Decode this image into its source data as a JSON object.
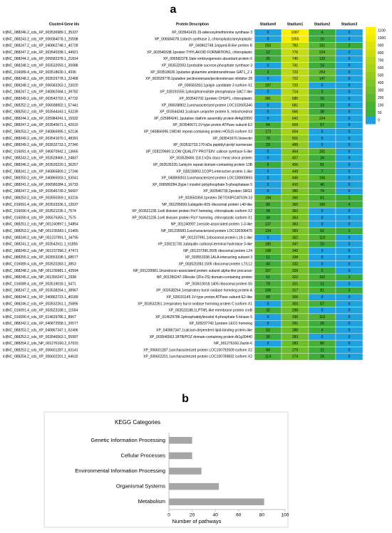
{
  "panel_a": {
    "label": "a",
    "columns": [
      "Cluster4 Gene Ids",
      "Protein Description",
      "Stadium0",
      "Stadium1",
      "Stadium2",
      "Stadium3"
    ],
    "rows": [
      [
        "lcl|NC_088246.2_cds_XP_003536989.1_35337",
        "XP_003541415.15-adenosylmethionine synthase 3",
        0,
        1087,
        4,
        0
      ],
      [
        "lcl|NC_088243.2_cds_XP_006584078.1_25598",
        "XP_006584078.1starch synthase 3, chloroplastic/amyloplastic",
        0,
        1055,
        10,
        0
      ],
      [
        "lcl|NC_088247.2_cds_XP_040862748.1_40728",
        "XP_040862748.1nipped-B-like protein B",
        253,
        783,
        151,
        2
      ],
      [
        "lcl|NC_088247.2_cds_XP_003540338.1_44921",
        "XP_003540338.1protein THYLAKOID FORMATION1, chloroplastic",
        12,
        776,
        224,
        0
      ],
      [
        "lcl|NC_088244.2_cds_XP_006582378.1_21814",
        "XP_006582378.1late embryogenesis abundant protein 6",
        25,
        745,
        132,
        0
      ],
      [
        "lcl|NC_088248.2_cds_XP_003532093.1_30088",
        "XP_003532093.1probable sucrose-phosphate synthase 3",
        0,
        741,
        14,
        0
      ],
      [
        "lcl|NC_016089.4_cds_XP_003518630.1_4336",
        "XP_003518630.1putative glutamine amidotransferase GAT1_2.1",
        3,
        722,
        253,
        0
      ],
      [
        "lcl|NC_088248.2_cds_XP_003529778.1_22468",
        "XP_003529778.1putative pectinesterase/pectinesterase inhibitor 28",
        0,
        722,
        147,
        0
      ],
      [
        "lcl|NC_088248.2_cds_XP_006583263.1_23020",
        "XP_006583263.1golgin candidate 3 isoform X1",
        197,
        720,
        0,
        0
      ],
      [
        "lcl|NC_088247.2_cds_XP_040862584.1_39782",
        "XP_028191555.1phosphoinositide phosphatase SAC7-like",
        0,
        714,
        3,
        0
      ],
      [
        "lcl|NC_088249.2_cds_XP_003542702.1_47732",
        "XP_003542702.1protein CHUP1, chloroplastic",
        281,
        685,
        15,
        0
      ],
      [
        "lcl|NC_088252.2_cds_XP_006598902.1_57441",
        "XP_006598902.1uncharacterized protein LOC102665340",
        0,
        681,
        33,
        0
      ],
      [
        "lcl|NC_088250.2_cds_XP_003544343.1_53239",
        "XP_003544343.1calcium uniporter protein 5, mitochondrial",
        0,
        666,
        38,
        0
      ],
      [
        "lcl|NC_088244.2_cds_XP_025984241.1_15932",
        "XP_025984241.1putative clathrin assembly protein At4g02650",
        0,
        642,
        224,
        0
      ],
      [
        "lcl|NC_088247.2_cds_XP_003540671.1_42010",
        "XP_003540671.1V-type proton ATPase subunit E2",
        64,
        609,
        57,
        0
      ],
      [
        "lcl|NC_088253.2_cds_XP_040866995.1_62136",
        "XP_040866995.1WD40 repeat-containing protein HOS15 isoform X3",
        173,
        604,
        0,
        0
      ],
      [
        "lcl|NC_088249.2_cds_XP_003541670.1_48391",
        "XP_003541670.1kinectin",
        76,
        501,
        0,
        0
      ],
      [
        "lcl|NC_088249.2_cds_XP_003532733.1_27340",
        "XP_003532733.170 kDa peptidyl-prolyl isomerase",
        23,
        485,
        0,
        0
      ],
      [
        "lcl|NC_016091.4_cds_XP_040870942.1_13665",
        "XP_028229669.1LOW QUALITY PROTEIN: callose synthase 5-like",
        0,
        464,
        151,
        0
      ],
      [
        "lcl|NC_088243.2_cds_XP_003528466.1_24837",
        "XP_003528466.118.1 kDa class I heat shock protein",
        0,
        457,
        24,
        0
      ],
      [
        "lcl|NC_088246.2_cds_XP_003535220.1_36257",
        "XP_003535220.1ankyrin repeat domain-containing protein 13B",
        5,
        456,
        81,
        0
      ],
      [
        "lcl|NC_088241.2_cds_XP_040865809.2_17246",
        "XP_028230893.1COP1-interactive protein 1-like",
        0,
        449,
        7,
        0
      ],
      [
        "lcl|NC_088250.2_cds_XP_040865003.1_53041",
        "XP_040865003.1uncharacterized protein LOC100800693",
        0,
        446,
        156,
        0
      ],
      [
        "lcl|NC_088241.2_cds_XP_006580284.1_16733",
        "XP_006580284.2type I inositol polyphosphate 5-phosphatase 5",
        0,
        410,
        40,
        0
      ],
      [
        "lcl|NC_088247.2_cds_XP_003546739.2_56607",
        "XP_003546739.2protein SRG1",
        0,
        385,
        74,
        0
      ],
      [
        "lcl|NC_088253.2_cds_XP_003550359.1_63216",
        "XP_003550359.1protein DETOXIFICATION 33",
        194,
        366,
        61,
        1
      ],
      [
        "lcl|NC_016091.4_cds_XP_003533336.1_13937",
        "NP_001295699.1ubiquitin-60S ribosomal protein L40-like",
        89,
        365,
        160,
        4
      ],
      [
        "lcl|NC_016090.4_cds_XP_003521235.1_7574",
        "XP_003521235.1cell division protein FtsY homolog, chloroplastic isoform X2",
        34,
        363,
        0,
        0
      ],
      [
        "lcl|NC_016090.4_cds_XP_006576355.1_7575",
        "XP_003521235.1cell division protein FtsY homolog, chloroplastic isoform X1",
        34,
        363,
        0,
        0
      ],
      [
        "lcl|NC_088251.2_cds_NP_001240997.1_54854",
        "NP_001240997.1vesicle-associated protein 1-3-like",
        137,
        363,
        0,
        0
      ],
      [
        "lcl|NC_088253.2_cds_NP_001235583.1_61405",
        "NP_001235583.1uncharacterized protein LOC100306475",
        134,
        360,
        62,
        1
      ],
      [
        "lcl|NC_088249.2_cds_NP_001237991.1_34795",
        "NP_001237991.1ribosomal protein L19-1-like",
        0,
        352,
        119,
        0
      ],
      [
        "lcl|NC_088241.2_cds_XP_003542611.1_61855",
        "XP_028211730.1ubiquitin carboxyl-terminal hydrolase 3-like",
        185,
        347,
        10,
        0
      ],
      [
        "lcl|NC_088249.2_cds_NP_001237396.2_47471",
        "NP_001237396.2605 ribosomal protein L24",
        198,
        343,
        0,
        0
      ],
      [
        "lcl|NC_088255.2_cds_XP_003553338.1_68577",
        "XP_003553338.1ALA-interacting subunit 3",
        11,
        338,
        0,
        0
      ],
      [
        "lcl|NC_016089.4_cds_XP_003520283.1_3853",
        "XP_003520283.1505 ribosomal protein L7/L12",
        43,
        332,
        0,
        0
      ],
      [
        "lcl|NC_088248.2_cds_NP_001239981.1_42594",
        "NP_001239981.1translocon-associated protein subunit alpha-like precursor",
        157,
        328,
        2,
        0
      ],
      [
        "lcl|NC_088245.2_cds_NP_001356247.1_2938",
        "NP_001356247.1Rieske (2Fe-2S) domain-containing protein",
        51,
        322,
        102,
        1
      ],
      [
        "lcl|NC_016089.4_cds_XP_003519018.1_5471",
        "XP_003519018.1405 ribosomal protein S5",
        79,
        321,
        11,
        0
      ],
      [
        "lcl|NC_088247.2_cds_XP_003538264.1_38967",
        "XP_003538264.1respiratory burst oxidase homolog protein A",
        106,
        317,
        81,
        3
      ],
      [
        "lcl|NC_088244.2_cds_XP_040862723.1_40189",
        "XP_028191145.1V-type proton ATPase subunit E2-like",
        68,
        306,
        0,
        0
      ],
      [
        "lcl|NC_088246.2_cds_XP_003532261.1_25895",
        "XP_003532261.1respiratory burst oxidase homolog protein C isoform X1",
        0,
        303,
        57,
        0
      ],
      [
        "lcl|NC_016091.4_cds_XP_003523188.1_11554",
        "XP_003523188.1LPTM1-like membrane protein cnrB",
        32,
        298,
        0,
        0
      ],
      [
        "lcl|NC_016090.4_cds_XP_014629786.1_8967",
        "XP_014629786.1phosphatidylinositol 4-phosphate 5-kinase 5",
        0,
        296,
        113,
        0
      ],
      [
        "lcl|NC_088242.2_cds_XP_040872558.1_20577",
        "XP_028237742.1protein LEO1 homolog",
        0,
        291,
        29,
        0
      ],
      [
        "lcl|NC_088253.2_cds_XP_040867347.1_62496",
        "XP_040867347.1calcium-dependent lipid-binding protein-like",
        53,
        288,
        4,
        0
      ],
      [
        "lcl|NC_088253.2_cds_XP_003546563.1_55997",
        "XP_003546563.1BTB/POZ domain-containing protein At1g30440",
        30,
        283,
        0,
        0
      ],
      [
        "lcl|NC_088254.2_cds_NP_001276160.2_67015",
        "NP_001276160.2actin-6",
        0,
        283,
        80,
        0
      ],
      [
        "lcl|NC_088253.2_cds_XP_006601287.1_63141",
        "XP_006601287.1uncharacterized protein LOC100792609 isoform X2",
        84,
        279,
        11,
        0
      ],
      [
        "lcl|NC_088254.2_cds_XP_006602201.1_64632",
        "XP_006602201.1uncharacterized protein LOC100789832 isoform X2",
        114,
        274,
        24,
        0
      ]
    ],
    "colorbar": {
      "ticks": [
        1100,
        1000,
        900,
        800,
        700,
        600,
        500,
        400,
        300,
        200,
        100,
        50,
        0
      ],
      "zero_color": "#1fa3e0",
      "low_color": "#3aab3c",
      "high_color": "#fff200"
    }
  },
  "panel_b_label": "b",
  "chart_data": {
    "type": "bar",
    "orientation": "horizontal",
    "title": "KEGG Categories",
    "categories": [
      "Genetic Information Processing",
      "Cellular Processes",
      "Environmental Information Processing",
      "Organismal Systems",
      "Metabolism"
    ],
    "values": [
      20,
      20,
      28,
      43,
      82
    ],
    "color": "#a6a6a6",
    "xlabel": "Number of pathways",
    "xlim": [
      0,
      100
    ],
    "xticks": [
      0,
      20,
      40,
      60,
      80,
      100
    ],
    "grid": false
  }
}
